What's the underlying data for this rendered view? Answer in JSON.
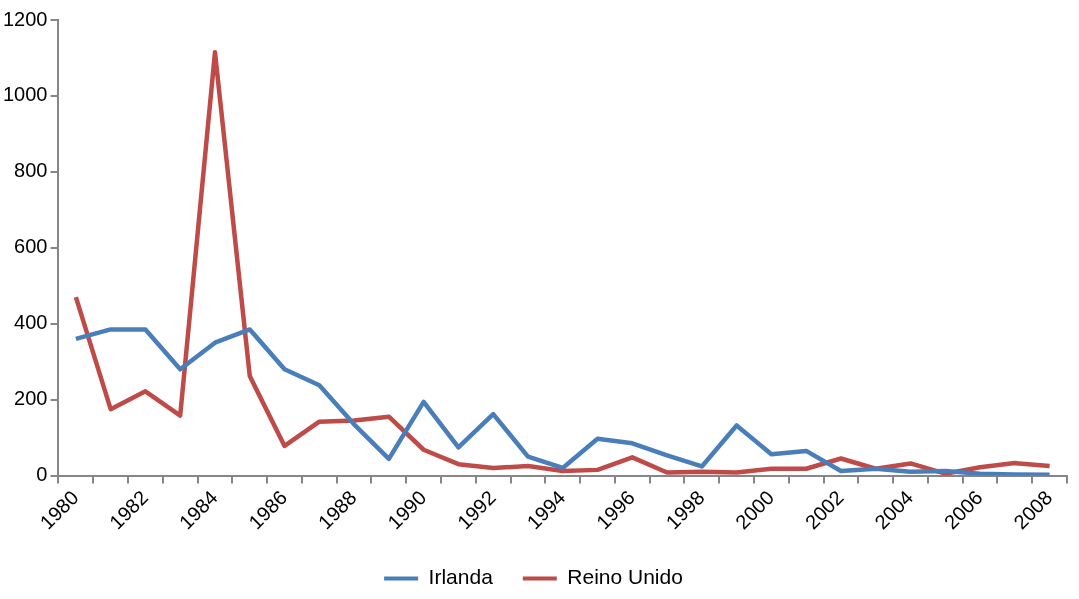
{
  "chart_data": {
    "type": "line",
    "categories": [
      "1980",
      null,
      "1982",
      null,
      "1984",
      null,
      "1986",
      null,
      "1988",
      null,
      "1990",
      null,
      "1992",
      null,
      "1994",
      null,
      "1996",
      null,
      "1998",
      null,
      "2000",
      null,
      "2002",
      null,
      "2004",
      null,
      "2006",
      null,
      "2008"
    ],
    "series": [
      {
        "name": "Irlanda",
        "color": "#4a7ebb",
        "values": [
          360,
          385,
          385,
          280,
          350,
          385,
          280,
          238,
          135,
          44,
          194,
          74,
          162,
          50,
          20,
          97,
          85,
          53,
          24,
          132,
          56,
          65,
          12,
          18,
          10,
          12,
          5,
          3,
          2
        ]
      },
      {
        "name": "Reino Unido",
        "color": "#be4b48",
        "values": [
          470,
          175,
          222,
          158,
          1115,
          262,
          78,
          142,
          145,
          155,
          68,
          30,
          20,
          25,
          12,
          15,
          48,
          8,
          10,
          8,
          18,
          18,
          45,
          18,
          32,
          5,
          22,
          33,
          25
        ]
      }
    ],
    "ylim": [
      0,
      1200
    ],
    "yticks": [
      0,
      200,
      400,
      600,
      800,
      1000,
      1200
    ],
    "grid": false,
    "legend": "bottom",
    "marker": "none",
    "line_style": "solid"
  }
}
